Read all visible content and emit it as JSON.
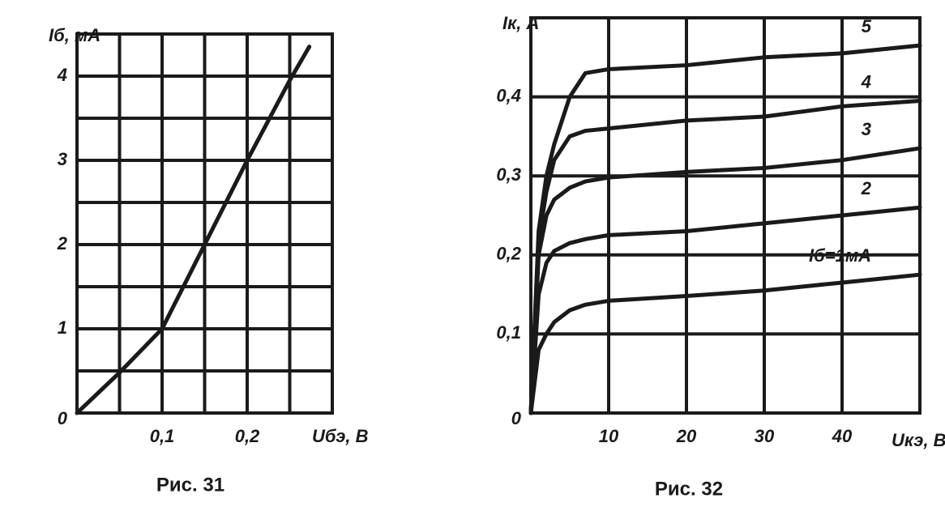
{
  "chart_data": [
    {
      "type": "line",
      "caption": "Рис. 31",
      "y_label": "Iб, мА",
      "x_label": "Uбэ, В",
      "x": [
        0,
        0.05,
        0.1,
        0.15,
        0.2,
        0.25,
        0.273
      ],
      "values": [
        0,
        0.48,
        1.0,
        2.0,
        3.0,
        3.95,
        4.35
      ],
      "color": "#1a1a1a",
      "xlim": [
        0,
        0.3
      ],
      "ylim": [
        0,
        4.5
      ],
      "xticks": [
        {
          "value": 0.1,
          "label": "0,1"
        },
        {
          "value": 0.2,
          "label": "0,2"
        }
      ],
      "yticks": [
        0,
        1,
        2,
        3,
        4
      ],
      "minor_xticks": [
        0.05,
        0.15,
        0.25
      ],
      "minor_yticks": [
        0.5,
        1.5,
        2.5,
        3.5
      ],
      "grid": true
    },
    {
      "type": "line",
      "caption": "Рис. 32",
      "y_label": "Iк, А",
      "x_label": "Uкэ, В",
      "x": [
        0,
        1,
        2,
        3,
        5,
        7,
        10,
        20,
        30,
        40,
        50
      ],
      "series": [
        {
          "name": "Iб=1мА",
          "color": "#1a1a1a",
          "values": [
            0,
            0.08,
            0.1,
            0.115,
            0.13,
            0.137,
            0.142,
            0.148,
            0.155,
            0.165,
            0.175
          ]
        },
        {
          "name": "2",
          "color": "#1a1a1a",
          "values": [
            0,
            0.15,
            0.19,
            0.205,
            0.215,
            0.22,
            0.225,
            0.23,
            0.24,
            0.25,
            0.26
          ]
        },
        {
          "name": "3",
          "color": "#1a1a1a",
          "values": [
            0,
            0.2,
            0.25,
            0.27,
            0.285,
            0.293,
            0.298,
            0.305,
            0.31,
            0.32,
            0.335
          ]
        },
        {
          "name": "4",
          "color": "#1a1a1a",
          "values": [
            0,
            0.22,
            0.28,
            0.32,
            0.35,
            0.357,
            0.36,
            0.37,
            0.375,
            0.388,
            0.395
          ]
        },
        {
          "name": "5",
          "color": "#1a1a1a",
          "values": [
            0,
            0.23,
            0.3,
            0.34,
            0.4,
            0.43,
            0.435,
            0.44,
            0.45,
            0.455,
            0.465
          ]
        }
      ],
      "xlim": [
        0,
        50
      ],
      "ylim": [
        0,
        0.5
      ],
      "xticks": [
        10,
        20,
        30,
        40
      ],
      "yticks": [
        0,
        {
          "value": 0.1,
          "label": "0,1"
        },
        {
          "value": 0.2,
          "label": "0,2"
        },
        {
          "value": 0.3,
          "label": "0,3"
        },
        {
          "value": 0.4,
          "label": "0,4"
        }
      ],
      "grid": true
    }
  ]
}
